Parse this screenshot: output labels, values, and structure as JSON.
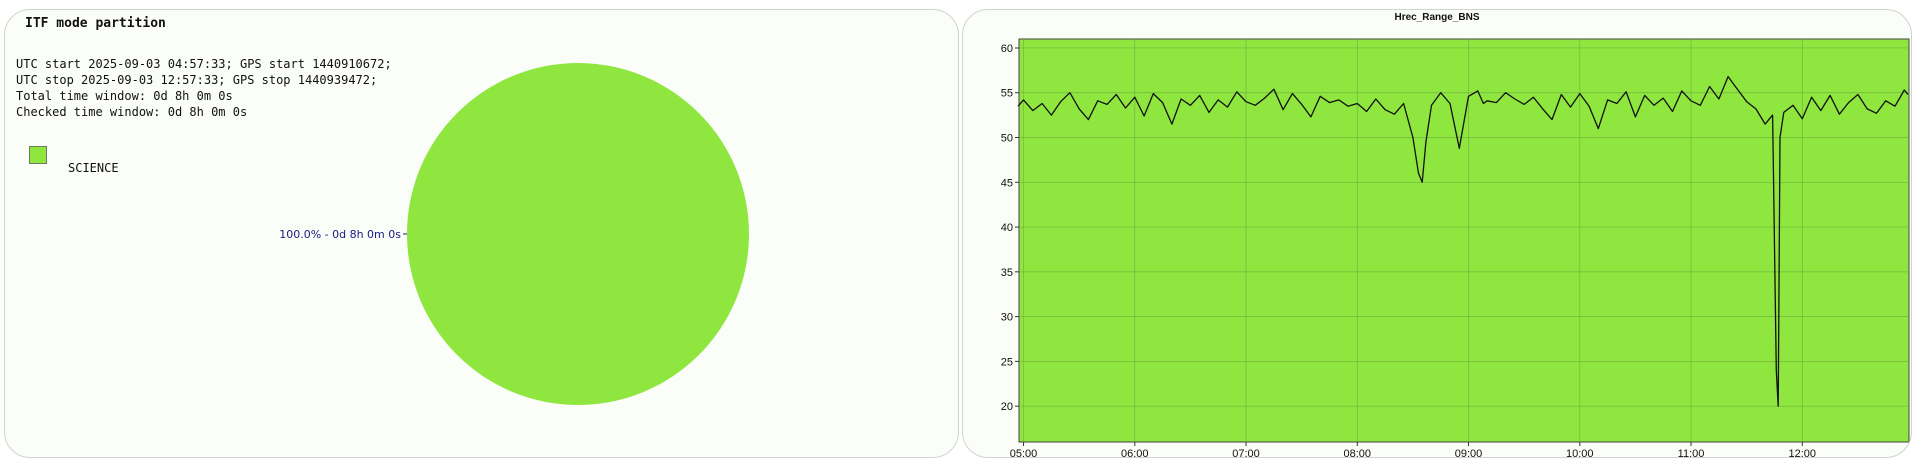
{
  "pie_panel": {
    "title": "ITF mode partition",
    "info_lines": [
      "UTC start 2025-09-03 04:57:33; GPS start 1440910672;",
      "UTC stop 2025-09-03 12:57:33; GPS stop 1440939472;",
      "Total time window: 0d 8h 0m 0s",
      "Checked time window: 0d 8h 0m 0s"
    ],
    "legend_label": "SCIENCE",
    "slice_label": "100.0% - 0d 8h 0m 0s"
  },
  "colors": {
    "science": "#8ee63e",
    "slice_label": "#1a1a80",
    "line": "#111111",
    "grid": "#6fa843"
  },
  "chart_data": [
    {
      "type": "pie",
      "labels": [
        "SCIENCE"
      ],
      "values": [
        100.0
      ],
      "slice_labels": [
        "100.0% - 0d 8h 0m 0s"
      ],
      "legend": "top-left"
    },
    {
      "type": "line",
      "title": "Hrec_Range_BNS",
      "xlabel": "",
      "ylabel": "",
      "x_ticks": [
        "05:00",
        "06:00",
        "07:00",
        "08:00",
        "09:00",
        "10:00",
        "11:00",
        "12:00"
      ],
      "xlim": [
        "04:57:33",
        "12:57:33"
      ],
      "ylim": [
        16,
        61
      ],
      "y_ticks": [
        20,
        25,
        30,
        35,
        40,
        45,
        50,
        55,
        60
      ],
      "grid": true,
      "background": "#8ee63e",
      "series": [
        {
          "x": [
            "04:57",
            "05:00",
            "05:05",
            "05:10",
            "05:15",
            "05:20",
            "05:25",
            "05:30",
            "05:35",
            "05:40",
            "05:45",
            "05:50",
            "05:55",
            "06:00",
            "06:05",
            "06:10",
            "06:15",
            "06:20",
            "06:25",
            "06:30",
            "06:35",
            "06:40",
            "06:45",
            "06:50",
            "06:55",
            "07:00",
            "07:05",
            "07:10",
            "07:15",
            "07:20",
            "07:25",
            "07:30",
            "07:35",
            "07:40",
            "07:45",
            "07:50",
            "07:55",
            "08:00",
            "08:05",
            "08:10",
            "08:15",
            "08:20",
            "08:25",
            "08:30",
            "08:33",
            "08:35",
            "08:37",
            "08:40",
            "08:45",
            "08:50",
            "08:55",
            "09:00",
            "09:05",
            "09:08",
            "09:10",
            "09:15",
            "09:20",
            "09:25",
            "09:30",
            "09:35",
            "09:40",
            "09:45",
            "09:50",
            "09:55",
            "10:00",
            "10:05",
            "10:10",
            "10:15",
            "10:20",
            "10:25",
            "10:30",
            "10:35",
            "10:40",
            "10:45",
            "10:50",
            "10:55",
            "11:00",
            "11:05",
            "11:10",
            "11:15",
            "11:20",
            "11:25",
            "11:30",
            "11:35",
            "11:40",
            "11:44",
            "11:46",
            "11:47",
            "11:48",
            "11:50",
            "11:55",
            "12:00",
            "12:05",
            "12:10",
            "12:15",
            "12:20",
            "12:25",
            "12:30",
            "12:35",
            "12:40",
            "12:45",
            "12:50",
            "12:55",
            "12:57"
          ],
          "values": [
            53.5,
            54.2,
            53.0,
            53.8,
            52.5,
            54.0,
            55.0,
            53.2,
            52.0,
            54.1,
            53.7,
            54.8,
            53.3,
            54.5,
            52.4,
            54.9,
            53.9,
            51.5,
            54.3,
            53.6,
            54.7,
            52.8,
            54.2,
            53.4,
            55.1,
            54.0,
            53.6,
            54.4,
            55.4,
            53.1,
            54.9,
            53.7,
            52.3,
            54.6,
            53.9,
            54.2,
            53.5,
            53.8,
            52.9,
            54.3,
            53.1,
            52.6,
            53.8,
            50.0,
            46.0,
            45.0,
            49.5,
            53.6,
            55.0,
            53.8,
            48.8,
            54.6,
            55.2,
            53.8,
            54.1,
            53.9,
            55.0,
            54.3,
            53.7,
            54.5,
            53.2,
            52.0,
            54.8,
            53.4,
            54.9,
            53.5,
            51.0,
            54.2,
            53.8,
            55.1,
            52.3,
            54.7,
            53.6,
            54.4,
            52.9,
            55.2,
            54.1,
            53.6,
            55.7,
            54.3,
            56.8,
            55.4,
            54.0,
            53.2,
            51.5,
            52.5,
            24.0,
            20.0,
            50.0,
            52.8,
            53.6,
            52.1,
            54.5,
            53.0,
            54.7,
            52.6,
            53.9,
            54.8,
            53.2,
            52.7,
            54.1,
            53.5,
            55.3,
            54.8
          ]
        }
      ]
    }
  ]
}
